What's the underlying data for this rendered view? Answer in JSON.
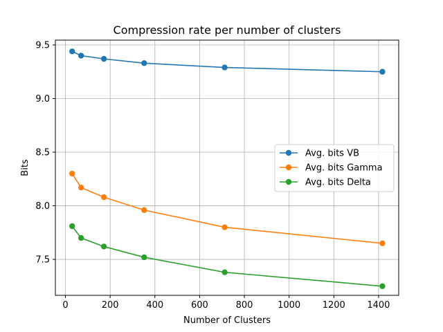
{
  "chart_data": {
    "type": "line",
    "title": "Compression rate per number of clusters",
    "xlabel": "Number of Clusters",
    "ylabel": "Bits",
    "xlim": [
      -45,
      1490
    ],
    "ylim": [
      7.165,
      9.545
    ],
    "xticks": [
      0,
      200,
      400,
      600,
      800,
      1000,
      1200,
      1400
    ],
    "yticks": [
      7.5,
      8.0,
      8.5,
      9.0,
      9.5
    ],
    "ytick_labels": [
      "7.5",
      "8.0",
      "8.5",
      "9.0",
      "9.5"
    ],
    "grid": true,
    "legend_position": "center-right",
    "x": [
      30,
      70,
      172,
      352,
      712,
      1417
    ],
    "series": [
      {
        "name": "Avg. bits VB",
        "color": "#1f77b4",
        "values": [
          9.44,
          9.4,
          9.37,
          9.33,
          9.29,
          9.25
        ]
      },
      {
        "name": "Avg. bits Gamma",
        "color": "#ff7f0e",
        "values": [
          8.3,
          8.17,
          8.08,
          7.96,
          7.8,
          7.65
        ]
      },
      {
        "name": "Avg. bits Delta",
        "color": "#2ca02c",
        "values": [
          7.81,
          7.7,
          7.62,
          7.52,
          7.38,
          7.25
        ]
      }
    ]
  }
}
